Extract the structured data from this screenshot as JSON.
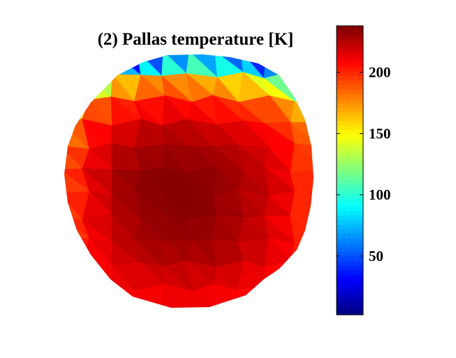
{
  "chart_data": {
    "type": "heatmap",
    "title": "(2) Pallas temperature [K]",
    "colormap": "jet",
    "colorbar": {
      "range": [
        2,
        238
      ],
      "ticks": [
        50,
        100,
        150,
        200
      ],
      "tick_labels": [
        "50",
        "100",
        "150",
        "200"
      ],
      "placement": "right"
    },
    "surface": {
      "body": "Pallas",
      "quantity": "temperature",
      "unit": "K",
      "rows": [
        [
          5,
          15,
          30,
          45,
          60,
          75,
          60,
          45,
          30,
          15
        ],
        [
          70,
          120,
          160,
          175,
          180,
          170,
          165,
          150,
          130,
          90
        ],
        [
          150,
          185,
          200,
          205,
          208,
          205,
          200,
          195,
          185,
          160
        ],
        [
          180,
          205,
          215,
          222,
          225,
          222,
          218,
          212,
          205,
          185
        ],
        [
          190,
          212,
          225,
          230,
          232,
          230,
          228,
          222,
          215,
          195
        ],
        [
          195,
          215,
          230,
          235,
          236,
          235,
          232,
          226,
          218,
          200
        ],
        [
          195,
          215,
          228,
          234,
          236,
          236,
          232,
          226,
          218,
          200
        ],
        [
          195,
          212,
          225,
          232,
          234,
          234,
          230,
          224,
          216,
          200
        ],
        [
          198,
          210,
          222,
          228,
          230,
          230,
          228,
          222,
          215,
          202
        ],
        [
          200,
          208,
          215,
          220,
          222,
          222,
          220,
          215,
          210,
          203
        ],
        [
          200,
          204,
          208,
          210,
          212,
          212,
          210,
          208,
          205,
          202
        ]
      ]
    }
  }
}
